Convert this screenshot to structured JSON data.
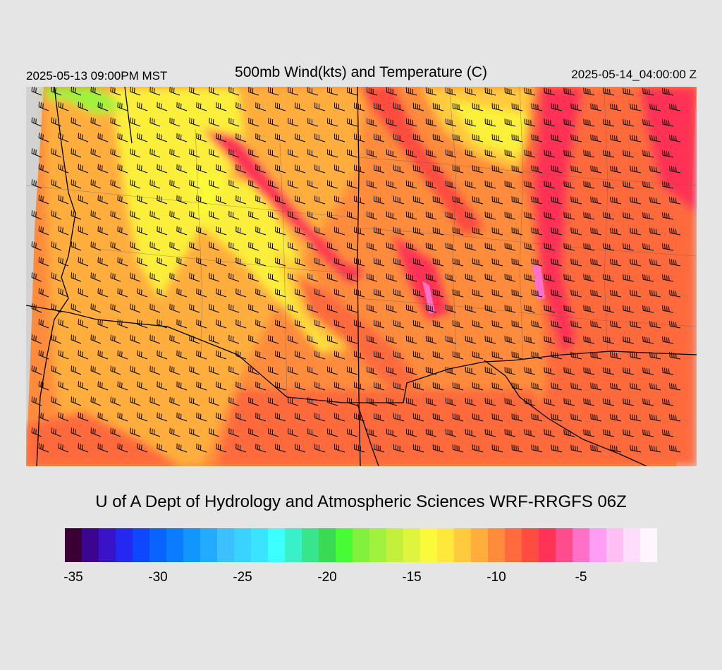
{
  "header": {
    "local_time": "2025-05-13 09:00PM MST",
    "title": "500mb Wind(kts) and Temperature (C)",
    "utc_time": "2025-05-14_04:00:00 Z"
  },
  "footer": {
    "credit": "U of A Dept of Hydrology and Atmospheric Sciences WRF-RRGFS 06Z"
  },
  "colorbar": {
    "colors": [
      "#3a0033",
      "#3c0590",
      "#3a12c8",
      "#2528f0",
      "#0f46ff",
      "#0b63ff",
      "#0b7cff",
      "#1196ff",
      "#24aaff",
      "#3cc0ff",
      "#3ad2ff",
      "#3ae4ff",
      "#3cffff",
      "#3af0c8",
      "#38e48c",
      "#3ad956",
      "#47fb35",
      "#82f13d",
      "#a0f23e",
      "#c2f03c",
      "#dff43c",
      "#fafa3a",
      "#ffe83c",
      "#ffca3e",
      "#ffae3e",
      "#ff8c3c",
      "#ff6a3e",
      "#ff4c40",
      "#ff3355",
      "#fe4d8c",
      "#ff70c6",
      "#ff9ef4",
      "#ffbff4",
      "#ffdcfa",
      "#fff5fe"
    ],
    "tick_labels": [
      "-35",
      "-30",
      "-25",
      "-20",
      "-15",
      "-10",
      "-5"
    ]
  },
  "map": {
    "field": "500mb temperature (C)",
    "overlay": "wind barbs (kts)",
    "palette": {
      "warm_high": "#ff3355",
      "warm": "#ff6a3e",
      "mid": "#ff8c3c",
      "cool": "#ffae3e",
      "cooler": "#ffca3e",
      "coolest": "#fafa3a",
      "cold_pocket": "#a0f23e",
      "peak": "#ff70c6",
      "no_data": "#d2d2d2"
    }
  }
}
